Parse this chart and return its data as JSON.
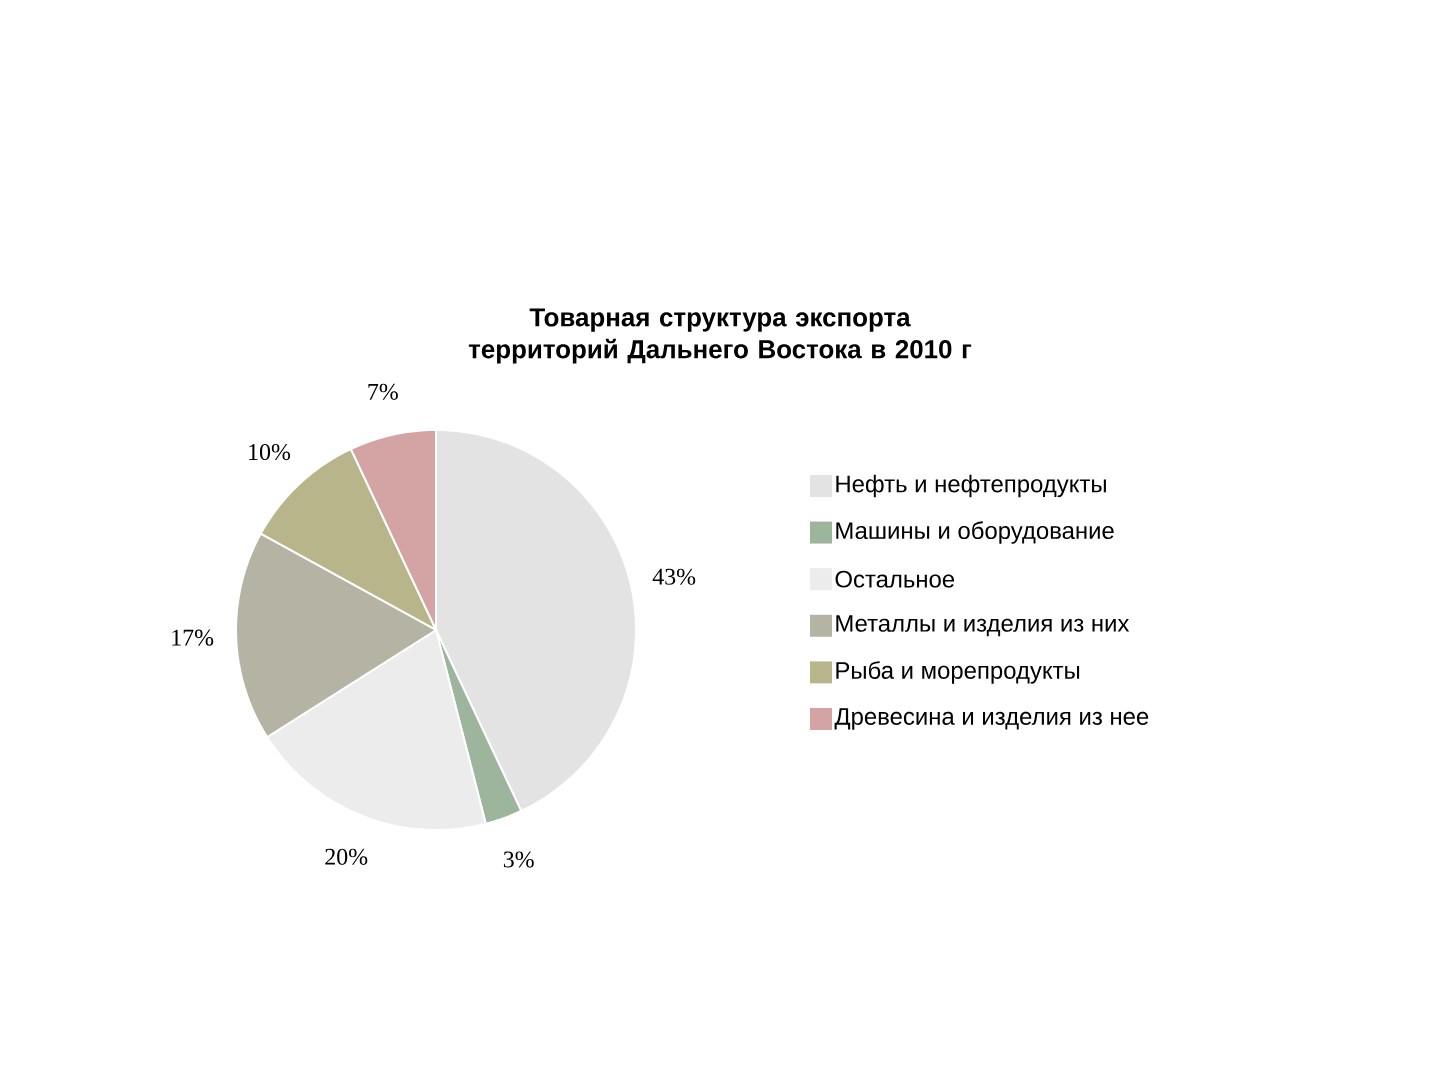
{
  "chart_data": {
    "type": "pie",
    "title": "Товарная структура экспорта территорий Дальнего Востока в 2010 г",
    "categories": [
      "Нефть и нефтепродукты",
      "Машины и оборудование",
      "Остальное",
      "Металлы и изделия из них",
      "Рыба и морепродукты",
      "Древесина и изделия из нее"
    ],
    "values": [
      43,
      3,
      20,
      17,
      10,
      7
    ],
    "value_labels": [
      "43%",
      "3%",
      "20%",
      "17%",
      "10%",
      "7%"
    ],
    "colors": [
      "#e3e3e3",
      "#9db59c",
      "#ececec",
      "#b4b3a4",
      "#b8b58a",
      "#d4a3a4"
    ],
    "legend": "right"
  }
}
